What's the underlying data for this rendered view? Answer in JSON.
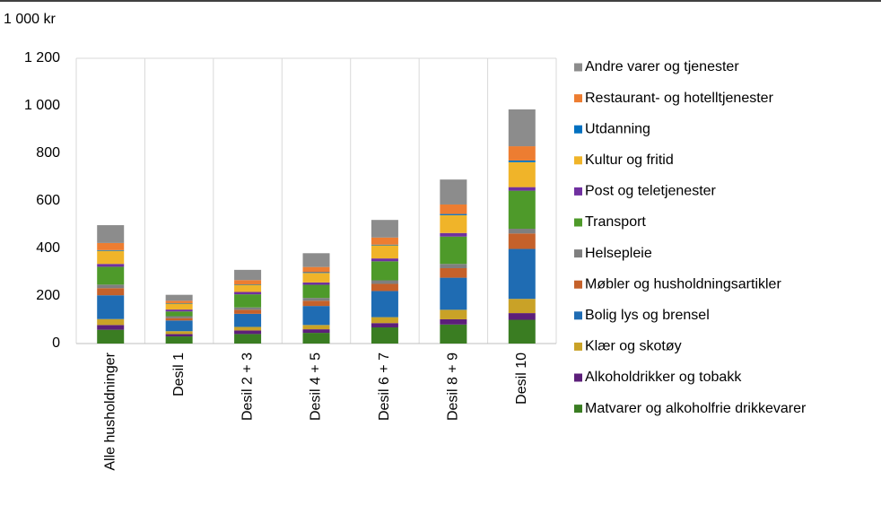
{
  "chart_data": {
    "type": "stacked_bar",
    "unit_label": "1 000 kr",
    "categories": [
      "Alle husholdninger",
      "Desil 1",
      "Desil 2 + 3",
      "Desil 4 + 5",
      "Desil 6 + 7",
      "Desil 8 + 9",
      "Desil 10"
    ],
    "ylim": [
      0,
      1200
    ],
    "yticks": [
      0,
      200,
      400,
      600,
      800,
      {
        "value": 1000,
        "label": "1 000"
      },
      {
        "value": 1200,
        "label": "1 200"
      }
    ],
    "series": [
      {
        "name": "Matvarer og alkoholfrie drikkevarer",
        "color": "#3a7d22",
        "values": [
          58,
          30,
          40,
          45,
          68,
          80,
          100
        ]
      },
      {
        "name": "Alkoholdrikker og tobakk",
        "color": "#5c1f7a",
        "values": [
          20,
          10,
          15,
          15,
          18,
          22,
          28
        ]
      },
      {
        "name": "Klær og skotøy",
        "color": "#c9a227",
        "values": [
          25,
          12,
          15,
          18,
          25,
          40,
          60
        ]
      },
      {
        "name": "Bolig lys og brensel",
        "color": "#1f6cb3",
        "values": [
          100,
          45,
          55,
          80,
          110,
          135,
          210
        ]
      },
      {
        "name": "Møbler og husholdningsartikler",
        "color": "#c5612a",
        "values": [
          30,
          10,
          17,
          22,
          30,
          40,
          65
        ]
      },
      {
        "name": "Helsepleie",
        "color": "#7f7f7f",
        "values": [
          15,
          8,
          10,
          12,
          15,
          18,
          20
        ]
      },
      {
        "name": "Transport",
        "color": "#4e9a2a",
        "values": [
          75,
          20,
          55,
          55,
          80,
          115,
          160
        ]
      },
      {
        "name": "Post og teletjenester",
        "color": "#7030a0",
        "values": [
          12,
          8,
          10,
          10,
          12,
          15,
          15
        ]
      },
      {
        "name": "Kultur og fritid",
        "color": "#f0b429",
        "values": [
          55,
          25,
          30,
          40,
          55,
          75,
          105
        ]
      },
      {
        "name": "Utdanning",
        "color": "#0070c0",
        "values": [
          3,
          2,
          2,
          3,
          3,
          5,
          7
        ]
      },
      {
        "name": "Restaurant- og hotelltjenester",
        "color": "#ed7d31",
        "values": [
          30,
          10,
          18,
          22,
          30,
          40,
          60
        ]
      },
      {
        "name": "Andre varer og tjenester",
        "color": "#8c8c8c",
        "values": [
          75,
          25,
          43,
          58,
          74,
          105,
          155
        ]
      }
    ]
  }
}
